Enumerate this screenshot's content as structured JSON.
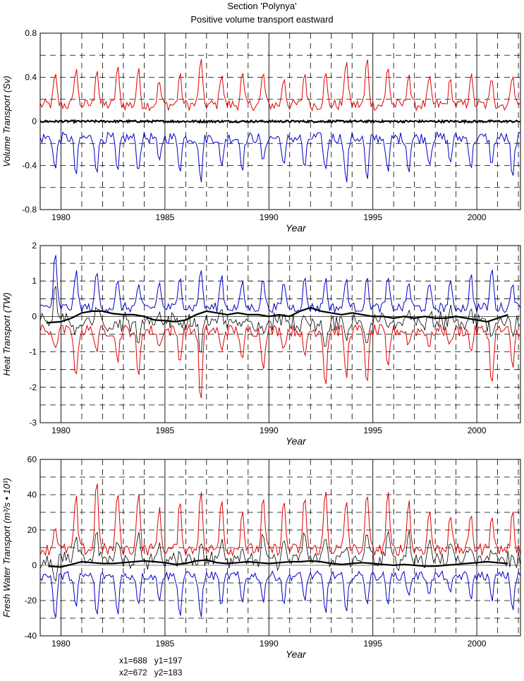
{
  "title_line1": "Section 'Polynya'",
  "title_line2": "Positive volume transport eastward",
  "footer": {
    "line1": "x1=688   y1=197",
    "line2": "x2=672   y2=183"
  },
  "colors": {
    "positive": "#e00000",
    "negative": "#0000c8",
    "net": "#000000",
    "grid": "#000000"
  },
  "chart_data": [
    {
      "type": "line",
      "ylabel": "Volume Transport (Sv)",
      "xlabel": "Year",
      "xlim": [
        1979.0,
        2002.1
      ],
      "ylim": [
        -0.8,
        0.8
      ],
      "yticks": [
        -0.8,
        -0.4,
        0,
        0.4,
        0.8
      ],
      "yticklabels": [
        "-0.8",
        "-0.4",
        "0",
        "0.4",
        "0.8"
      ],
      "xticks": [
        1980,
        1985,
        1990,
        1995,
        2000
      ],
      "xticklabels": [
        "1980",
        "1985",
        "1990",
        "1995",
        "2000"
      ],
      "grid": true,
      "series_style": "seasonal",
      "series": [
        {
          "role": "positive",
          "color": "#e00000",
          "base": 0.15,
          "amp": 0.3,
          "peaks": [
            0.43,
            0.5,
            0.49,
            0.5,
            0.48,
            0.37,
            0.43,
            0.58,
            0.45,
            0.44,
            0.45,
            0.4,
            0.45,
            0.44,
            0.58,
            0.58,
            0.51,
            0.45,
            0.4,
            0.38,
            0.43,
            0.4,
            0.45,
            0.45
          ]
        },
        {
          "role": "negative",
          "color": "#0000c8",
          "base": -0.15,
          "amp": -0.3,
          "peaks": [
            -0.45,
            -0.5,
            -0.46,
            -0.48,
            -0.46,
            -0.38,
            -0.45,
            -0.56,
            -0.43,
            -0.44,
            -0.38,
            -0.42,
            -0.44,
            -0.46,
            -0.57,
            -0.56,
            -0.48,
            -0.46,
            -0.4,
            -0.38,
            -0.43,
            -0.4,
            -0.54,
            -0.45
          ]
        },
        {
          "role": "net",
          "color": "#000000",
          "values": [
            0.0,
            0.0
          ]
        }
      ]
    },
    {
      "type": "line",
      "ylabel": "Heat Transport (TW)",
      "xlabel": "Year",
      "xlim": [
        1979.0,
        2002.1
      ],
      "ylim": [
        -3,
        2
      ],
      "yticks": [
        -3,
        -2,
        -1,
        0,
        1,
        2
      ],
      "yticklabels": [
        "-3",
        "-2",
        "-1",
        "0",
        "1",
        "2"
      ],
      "xticks": [
        1980,
        1985,
        1990,
        1995,
        2000
      ],
      "xticklabels": [
        "1980",
        "1985",
        "1990",
        "1995",
        "2000"
      ],
      "grid": true,
      "series_style": "seasonal",
      "series": [
        {
          "role": "negative-heat",
          "color": "#e00000",
          "base": -0.4,
          "amp": -1.0,
          "peaks": [
            -1.0,
            -1.8,
            -1.0,
            -1.3,
            -1.8,
            -0.9,
            -1.3,
            -2.5,
            -1.0,
            -1.3,
            -1.5,
            -0.9,
            -1.2,
            -2.0,
            -1.8,
            -2.0,
            -1.5,
            -0.8,
            -0.9,
            -0.8,
            -1.0,
            -2.0,
            -1.5,
            -0.8
          ]
        },
        {
          "role": "positive-heat",
          "color": "#0000c8",
          "base": 0.25,
          "amp": 0.8,
          "peaks": [
            1.8,
            1.3,
            1.3,
            1.0,
            0.9,
            1.0,
            1.2,
            1.4,
            1.2,
            1.0,
            1.1,
            1.0,
            1.1,
            1.1,
            1.1,
            1.1,
            1.1,
            1.0,
            0.9,
            1.0,
            1.2,
            1.4,
            1.0,
            1.0
          ]
        },
        {
          "role": "net-seasonal",
          "color": "#000000"
        },
        {
          "role": "net-smoothed",
          "color": "#000000",
          "x": [
            1979.3,
            1980.0,
            1980.5,
            1981.0,
            1981.5,
            1982.0,
            1982.5,
            1983.0,
            1983.5,
            1984.0,
            1984.5,
            1985.0,
            1985.5,
            1986.0,
            1986.5,
            1987.0,
            1987.5,
            1988.0,
            1988.5,
            1989.0,
            1989.5,
            1990.0,
            1990.5,
            1991.0,
            1991.5,
            1992.0,
            1992.5,
            1993.0,
            1993.5,
            1994.0,
            1994.5,
            1995.0,
            1995.5,
            1996.0,
            1996.5,
            1997.0,
            1997.5,
            1998.0,
            1998.5,
            1999.0,
            1999.5,
            2000.0,
            2000.5,
            2001.0,
            2001.5
          ],
          "values": [
            -0.18,
            -0.15,
            -0.05,
            0.1,
            0.15,
            0.15,
            0.08,
            0.05,
            0.05,
            0.0,
            -0.1,
            -0.12,
            -0.15,
            -0.1,
            0.05,
            0.15,
            0.1,
            0.05,
            0.1,
            0.05,
            0.05,
            0.0,
            0.05,
            0.0,
            0.15,
            0.25,
            0.15,
            0.1,
            0.05,
            0.1,
            0.05,
            0.0,
            0.0,
            -0.05,
            0.0,
            -0.05,
            0.0,
            -0.05,
            -0.05,
            0.0,
            -0.05,
            -0.1,
            -0.15,
            -0.05,
            0.05
          ]
        }
      ]
    },
    {
      "type": "line",
      "ylabel": "Fresh Water Transport (m³/s • 10³)",
      "xlabel": "Year",
      "xlim": [
        1979.0,
        2002.1
      ],
      "ylim": [
        -40,
        60
      ],
      "yticks": [
        -40,
        -20,
        0,
        20,
        40,
        60
      ],
      "yticklabels": [
        "-40",
        "-20",
        "0",
        "20",
        "40",
        "60"
      ],
      "xticks": [
        1980,
        1985,
        1990,
        1995,
        2000
      ],
      "xticklabels": [
        "1980",
        "1985",
        "1990",
        "1995",
        "2000"
      ],
      "grid": true,
      "series_style": "seasonal",
      "series": [
        {
          "role": "positive-fw",
          "color": "#e00000",
          "base": 9,
          "amp": 20,
          "peaks": [
            23,
            40,
            50,
            43,
            43,
            33,
            36,
            44,
            40,
            32,
            39,
            37,
            40,
            44,
            38,
            42,
            42,
            38,
            32,
            30,
            30,
            30,
            30,
            30
          ]
        },
        {
          "role": "negative-fw",
          "color": "#0000c8",
          "base": -6,
          "amp": -15,
          "peaks": [
            -32,
            -25,
            -30,
            -28,
            -22,
            -20,
            -30,
            -31,
            -24,
            -22,
            -21,
            -22,
            -20,
            -28,
            -29,
            -22,
            -22,
            -18,
            -17,
            -17,
            -19,
            -20,
            -26,
            -25
          ]
        },
        {
          "role": "net-seasonal",
          "color": "#000000"
        },
        {
          "role": "net-smoothed",
          "color": "#000000",
          "x": [
            1979.4,
            1980.0,
            1980.5,
            1981.0,
            1981.5,
            1982.0,
            1982.5,
            1983.0,
            1983.5,
            1984.0,
            1984.5,
            1985.0,
            1985.5,
            1986.0,
            1986.5,
            1987.0,
            1987.5,
            1988.0,
            1988.5,
            1989.0,
            1989.5,
            1990.0,
            1990.5,
            1991.0,
            1991.5,
            1992.0,
            1992.5,
            1993.0,
            1993.5,
            1994.0,
            1994.5,
            1995.0,
            1995.5,
            1996.0,
            1996.5,
            1997.0,
            1997.5,
            1998.0,
            1998.5,
            1999.0,
            1999.5,
            2000.0,
            2000.5,
            2001.0,
            2001.5
          ],
          "values": [
            -0.5,
            -1.0,
            0.5,
            2.0,
            1.5,
            1.0,
            1.0,
            1.5,
            2.0,
            2.5,
            2.0,
            1.5,
            0.5,
            1.0,
            2.5,
            3.0,
            1.5,
            1.0,
            1.5,
            2.0,
            1.5,
            1.0,
            1.5,
            2.0,
            2.0,
            2.5,
            2.0,
            1.0,
            0.5,
            1.0,
            1.5,
            1.0,
            0.5,
            0.0,
            0.5,
            0.0,
            -0.5,
            -0.5,
            0.0,
            0.5,
            1.0,
            1.5,
            2.0,
            1.5,
            1.0
          ]
        }
      ]
    }
  ]
}
